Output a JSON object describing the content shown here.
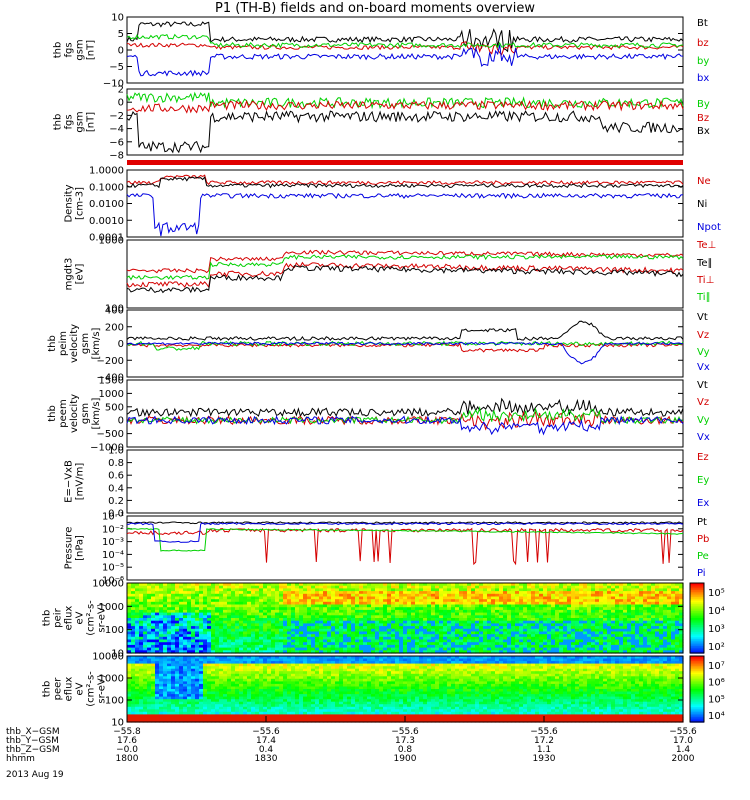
{
  "title": "P1 (TH-B) fields and on-board moments overview",
  "date": "2013 Aug 19",
  "colors": {
    "black": "#000000",
    "red": "#d40000",
    "green": "#00d000",
    "blue": "#0000e0",
    "ticks": "#000000"
  },
  "colorbar_pir": [
    "10⁵",
    "10⁴",
    "10³",
    "10²"
  ],
  "colorbar_per": [
    "10⁷",
    "10⁶",
    "10⁵",
    "10⁴"
  ],
  "chart_data": [
    {
      "type": "line",
      "id": "fgs",
      "ylabel": [
        "thb",
        "fgs",
        "gsm",
        "[nT]"
      ],
      "yticks": [
        "10",
        "5",
        "0",
        "−5",
        "−10"
      ],
      "ylim": [
        -10,
        10
      ],
      "legend": [
        {
          "name": "Bt",
          "color": "#000000"
        },
        {
          "name": "bz",
          "color": "#d40000"
        },
        {
          "name": "by",
          "color": "#00d000"
        },
        {
          "name": "bx",
          "color": "#0000e0"
        }
      ]
    },
    {
      "type": "line",
      "id": "fgs_fac",
      "ylabel": [
        "thb",
        "fgs",
        "gsm",
        "[nT]"
      ],
      "yticks": [
        "2",
        "0",
        "−2",
        "−4",
        "−6",
        "−8"
      ],
      "ylim": [
        -9,
        3
      ],
      "legend": [
        {
          "name": "By",
          "color": "#00d000"
        },
        {
          "name": "Bz",
          "color": "#d40000"
        },
        {
          "name": "Bx",
          "color": "#000000"
        }
      ]
    },
    {
      "type": "line",
      "id": "density",
      "yscale": "log",
      "ylabel": [
        "Density",
        "[cm-3]"
      ],
      "yticks": [
        "1.0000",
        "0.1000",
        "0.0100",
        "0.0010",
        "0.0001"
      ],
      "ylim": [
        0.0001,
        1.0
      ],
      "legend": [
        {
          "name": "Ne",
          "color": "#d40000"
        },
        {
          "name": "Ni",
          "color": "#000000"
        },
        {
          "name": "Npot",
          "color": "#0000e0"
        }
      ]
    },
    {
      "type": "line",
      "id": "temperature",
      "yscale": "log",
      "ylabel": [
        "mgdt3",
        "[eV]"
      ],
      "yticks": [
        "1000",
        "100"
      ],
      "ylim": [
        30,
        5000
      ],
      "legend": [
        {
          "name": "Te⊥",
          "color": "#d40000"
        },
        {
          "name": "Te∥",
          "color": "#000000"
        },
        {
          "name": "Ti⊥",
          "color": "#d40000"
        },
        {
          "name": "Ti∥",
          "color": "#00d000"
        }
      ]
    },
    {
      "type": "line",
      "id": "peim_velocity",
      "ylabel": [
        "thb",
        "peim",
        "velocity",
        "gsm",
        "[km/s]"
      ],
      "yticks": [
        "400",
        "200",
        "0",
        "−200",
        "−400"
      ],
      "ylim": [
        -400,
        400
      ],
      "legend": [
        {
          "name": "Vt",
          "color": "#000000"
        },
        {
          "name": "Vz",
          "color": "#d40000"
        },
        {
          "name": "Vy",
          "color": "#00d000"
        },
        {
          "name": "Vx",
          "color": "#0000e0"
        }
      ]
    },
    {
      "type": "line",
      "id": "peem_velocity",
      "ylabel": [
        "thb",
        "peem",
        "velocity",
        "gsm",
        "[km/s]"
      ],
      "yticks": [
        "1500",
        "1000",
        "500",
        "0",
        "−500",
        "−1000"
      ],
      "ylim": [
        -1000,
        1500
      ],
      "legend": [
        {
          "name": "Vt",
          "color": "#000000"
        },
        {
          "name": "Vz",
          "color": "#d40000"
        },
        {
          "name": "Vy",
          "color": "#00d000"
        },
        {
          "name": "Vx",
          "color": "#0000e0"
        }
      ]
    },
    {
      "type": "line",
      "id": "efield",
      "ylabel": [
        "E=−VxB",
        "[mV/m]"
      ],
      "yticks": [
        "1.0",
        "0.8",
        "0.6",
        "0.4",
        "0.2",
        "0.0"
      ],
      "ylim": [
        0,
        1
      ],
      "legend": [
        {
          "name": "Ez",
          "color": "#d40000"
        },
        {
          "name": "Ey",
          "color": "#00d000"
        },
        {
          "name": "Ex",
          "color": "#0000e0"
        }
      ]
    },
    {
      "type": "line",
      "id": "pressure",
      "yscale": "log",
      "ylabel": [
        "Pressure",
        "[nPa]"
      ],
      "yticks": [
        "10⁻¹",
        "10⁻²",
        "10⁻³",
        "10⁻⁴",
        "10⁻⁵",
        "10⁻⁶"
      ],
      "ylim": [
        1e-06,
        0.1
      ],
      "legend": [
        {
          "name": "Pt",
          "color": "#000000"
        },
        {
          "name": "Pb",
          "color": "#d40000"
        },
        {
          "name": "Pe",
          "color": "#00d000"
        },
        {
          "name": "Pi",
          "color": "#0000e0"
        }
      ]
    },
    {
      "type": "heatmap",
      "id": "peir_spectrogram",
      "yscale": "log",
      "ylabel": [
        "thb",
        "peir",
        "eflux",
        "eV",
        "(cm²-s-",
        "sr-eV)"
      ],
      "yticks": [
        "10000",
        "1000",
        "100",
        "10"
      ],
      "ylim": [
        5,
        25000
      ]
    },
    {
      "type": "heatmap",
      "id": "peer_spectrogram",
      "yscale": "log",
      "ylabel": [
        "thb",
        "peer",
        "eflux",
        "eV",
        "(cm²-s-",
        "sr-eV)"
      ],
      "yticks": [
        "10000",
        "1000",
        "100",
        "10"
      ],
      "ylim": [
        5,
        25000
      ]
    }
  ],
  "x_axis": {
    "row_labels": [
      "thb_X−GSM",
      "thb_Y−GSM",
      "thb_Z−GSM",
      "hhmm"
    ],
    "columns": [
      [
        "−55.8",
        "17.6",
        "−0.0",
        "1800"
      ],
      [
        "−55.6",
        "17.4",
        "0.4",
        "1830"
      ],
      [
        "−55.6",
        "17.3",
        "0.8",
        "1900"
      ],
      [
        "−55.6",
        "17.2",
        "1.1",
        "1930"
      ],
      [
        "−55.6",
        "17.0",
        "1.4",
        "2000"
      ]
    ]
  }
}
